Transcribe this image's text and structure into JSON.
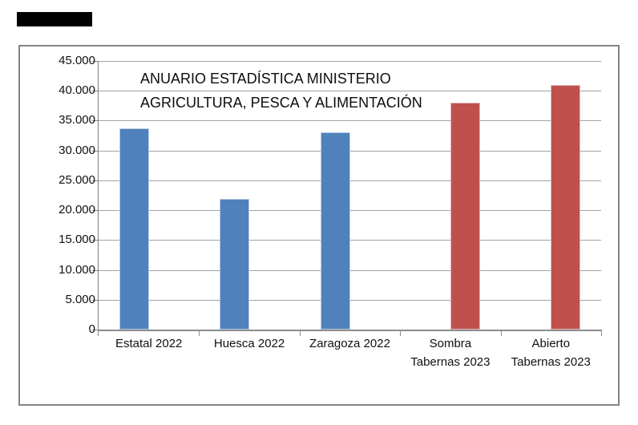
{
  "page": {
    "background": "#ffffff",
    "has_redaction_box": true
  },
  "chart_data": {
    "type": "bar",
    "title": {
      "line1": "ANUARIO ESTADÍSTICA MINISTERIO",
      "line2": "AGRICULTURA, PESCA Y ALIMENTACIÓN"
    },
    "categories": [
      "Estatal 2022",
      "Huesca 2022",
      "Zaragoza 2022",
      "Sombra Tabernas 2023",
      "Abierto Tabernas 2023"
    ],
    "category_label_lines": [
      [
        "Estatal 2022"
      ],
      [
        "Huesca 2022"
      ],
      [
        "Zaragoza 2022"
      ],
      [
        "Sombra",
        "Tabernas 2023"
      ],
      [
        "Abierto",
        "Tabernas 2023"
      ]
    ],
    "series": [
      {
        "name": "series_1_blue",
        "color": "#4F81BD",
        "values": [
          33700,
          21900,
          33000,
          null,
          null
        ]
      },
      {
        "name": "series_2_red",
        "color": "#C0504D",
        "values": [
          null,
          null,
          null,
          38000,
          41000
        ]
      }
    ],
    "xlabel": "",
    "ylabel": "",
    "ylim": [
      0,
      45000
    ],
    "ytick_step": 5000,
    "ytick_labels": [
      "0",
      "5.000",
      "10.000",
      "15.000",
      "20.000",
      "25.000",
      "30.000",
      "35.000",
      "40.000",
      "45.000"
    ],
    "grid": true,
    "legend_position": "none"
  },
  "colors": {
    "bar_blue": "#4F81BD",
    "bar_blue_edge": "#b8cce4",
    "bar_red": "#C0504D",
    "bar_red_edge": "#e6b9b8",
    "gridline": "#a3a3a3",
    "axis": "#808080",
    "frame_border": "#848484",
    "text": "#111111"
  }
}
